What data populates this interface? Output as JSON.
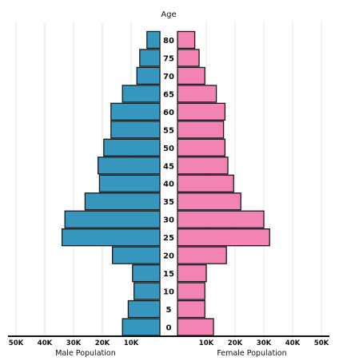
{
  "chart_data": {
    "type": "bar",
    "title": "Age",
    "categories": [
      "0",
      "5",
      "10",
      "15",
      "20",
      "25",
      "30",
      "35",
      "40",
      "45",
      "50",
      "55",
      "60",
      "65",
      "70",
      "75",
      "80"
    ],
    "series": [
      {
        "name": "Male Population",
        "color": "#3796bd",
        "values": [
          13000,
          11000,
          9000,
          9500,
          16500,
          34000,
          33000,
          26000,
          21000,
          21500,
          19500,
          17000,
          17000,
          13000,
          8000,
          7000,
          4500
        ]
      },
      {
        "name": "Female Population",
        "color": "#f383b3",
        "values": [
          12500,
          9500,
          9500,
          10000,
          17000,
          32000,
          30000,
          22000,
          19500,
          17500,
          16500,
          16000,
          16500,
          13500,
          9500,
          7500,
          6000
        ]
      }
    ],
    "xlabel_left": "Male Population",
    "xlabel_right": "Female Population",
    "ticks_left": [
      "50K",
      "40K",
      "30K",
      "20K",
      "10K"
    ],
    "ticks_right": [
      "10K",
      "20K",
      "30K",
      "40K",
      "50K"
    ],
    "tick_values": [
      50000,
      40000,
      30000,
      20000,
      10000
    ],
    "xlim": [
      0,
      50000
    ],
    "grid": true
  }
}
